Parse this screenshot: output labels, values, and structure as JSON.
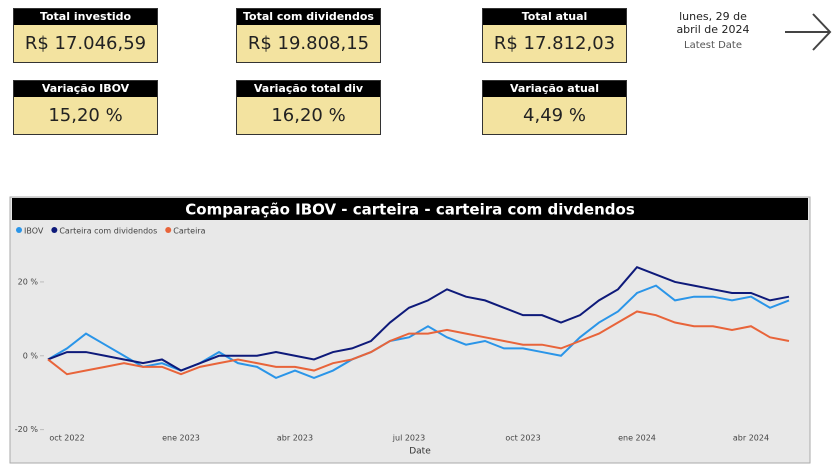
{
  "cards": [
    {
      "title": "Total investido",
      "value": "R$ 17.046,59"
    },
    {
      "title": "Total com dividendos",
      "value": "R$ 19.808,15"
    },
    {
      "title": "Total atual",
      "value": "R$ 17.812,03"
    },
    {
      "title": "Variação IBOV",
      "value": "15,20 %"
    },
    {
      "title": "Variação total div",
      "value": "16,20 %"
    },
    {
      "title": "Variação atual",
      "value": "4,49 %"
    }
  ],
  "latest_date": {
    "value": "lunes, 29 de abril de 2024",
    "label": "Latest Date"
  },
  "chart_data": {
    "type": "line",
    "title": "Comparação IBOV - carteira - carteira com divdendos",
    "x_label": "Date",
    "categories": [
      null,
      "oct 2022",
      null,
      null,
      null,
      null,
      null,
      "ene 2023",
      null,
      null,
      null,
      null,
      null,
      "abr 2023",
      null,
      null,
      null,
      null,
      null,
      "jul 2023",
      null,
      null,
      null,
      null,
      null,
      "oct 2023",
      null,
      null,
      null,
      null,
      null,
      "ene 2024",
      null,
      null,
      null,
      null,
      null,
      "abr 2024",
      null,
      null
    ],
    "series": [
      {
        "name": "IBOV",
        "color": "#2a95e8",
        "values": [
          -1,
          2,
          6,
          3,
          0,
          -3,
          -2,
          -4,
          -2,
          1,
          -2,
          -3,
          -6,
          -4,
          -6,
          -4,
          -1,
          1,
          4,
          5,
          8,
          5,
          3,
          4,
          2,
          2,
          1,
          0,
          5,
          9,
          12,
          17,
          19,
          15,
          16,
          16,
          15,
          16,
          13,
          15
        ]
      },
      {
        "name": "Carteira com dividendos",
        "color": "#0e1a7a",
        "values": [
          -1,
          1,
          1,
          0,
          -1,
          -2,
          -1,
          -4,
          -2,
          0,
          0,
          0,
          1,
          0,
          -1,
          1,
          2,
          4,
          9,
          13,
          15,
          18,
          16,
          15,
          13,
          11,
          11,
          9,
          11,
          15,
          18,
          24,
          22,
          20,
          19,
          18,
          17,
          17,
          15,
          16
        ]
      },
      {
        "name": "Carteira",
        "color": "#e8643a",
        "values": [
          -1,
          -5,
          -4,
          -3,
          -2,
          -3,
          -3,
          -5,
          -3,
          -2,
          -1,
          -2,
          -3,
          -3,
          -4,
          -2,
          -1,
          1,
          4,
          6,
          6,
          7,
          6,
          5,
          4,
          3,
          3,
          2,
          4,
          6,
          9,
          12,
          11,
          9,
          8,
          8,
          7,
          8,
          5,
          4
        ]
      }
    ],
    "ylim": [
      -22,
      30
    ],
    "yticks": [
      {
        "value": -20,
        "label": "-20 %"
      },
      {
        "value": 0,
        "label": "0 %"
      },
      {
        "value": 20,
        "label": "20 %"
      }
    ],
    "grid": false
  }
}
